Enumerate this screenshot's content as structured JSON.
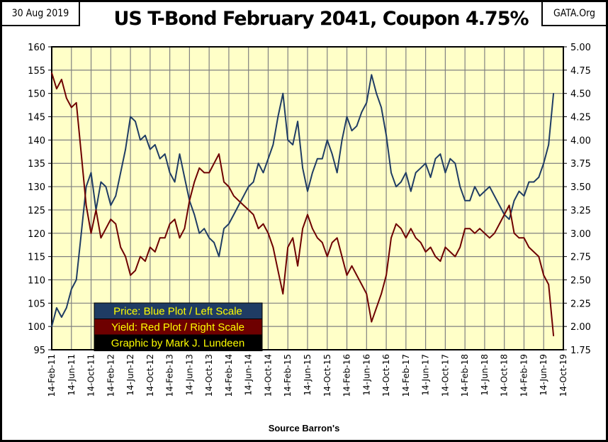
{
  "header": {
    "date": "30 Aug 2019",
    "site": "GATA.Org",
    "title": "US T-Bond February 2041, Coupon 4.75%"
  },
  "footer": {
    "source": "Source Barron's"
  },
  "colors": {
    "background": "#ffffc8",
    "price": "#1f3c64",
    "yield": "#6e0000",
    "grid": "#808080"
  },
  "chart_data": {
    "type": "line",
    "title": "US T-Bond February 2041, Coupon 4.75%",
    "grid": true,
    "legend_placement": "bottom-left",
    "left_axis": {
      "ylim": [
        95,
        160
      ],
      "ticks": [
        "95",
        "100",
        "105",
        "110",
        "115",
        "120",
        "125",
        "130",
        "135",
        "140",
        "145",
        "150",
        "155",
        "160"
      ]
    },
    "right_axis": {
      "ylim": [
        1.75,
        5.0
      ],
      "ticks": [
        "1.75",
        "2.00",
        "2.25",
        "2.50",
        "2.75",
        "3.00",
        "3.25",
        "3.50",
        "3.75",
        "4.00",
        "4.25",
        "4.50",
        "4.75",
        "5.00"
      ]
    },
    "x_ticks": [
      "14-Feb-11",
      "14-Jun-11",
      "14-Oct-11",
      "14-Feb-12",
      "14-Jun-12",
      "14-Oct-12",
      "14-Feb-13",
      "14-Jun-13",
      "14-Oct-13",
      "14-Feb-14",
      "14-Jun-14",
      "14-Oct-14",
      "14-Feb-15",
      "14-Jun-15",
      "14-Oct-15",
      "14-Feb-16",
      "14-Jun-16",
      "14-Oct-16",
      "14-Feb-17",
      "14-Jun-17",
      "14-Oct-17",
      "14-Feb-18",
      "14-Jun-18",
      "14-Oct-18",
      "14-Feb-19",
      "14-Jun-19",
      "14-Oct-19"
    ],
    "legend": [
      "Price:  Blue Plot / Left Scale",
      "Yield:  Red Plot / Right Scale",
      "Graphic by Mark J. Lundeen"
    ],
    "x": [
      "Feb-11",
      "Mar-11",
      "Apr-11",
      "May-11",
      "Jun-11",
      "Jul-11",
      "Aug-11",
      "Sep-11",
      "Oct-11",
      "Nov-11",
      "Dec-11",
      "Jan-12",
      "Feb-12",
      "Mar-12",
      "Apr-12",
      "May-12",
      "Jun-12",
      "Jul-12",
      "Aug-12",
      "Sep-12",
      "Oct-12",
      "Nov-12",
      "Dec-12",
      "Jan-13",
      "Feb-13",
      "Mar-13",
      "Apr-13",
      "May-13",
      "Jun-13",
      "Jul-13",
      "Aug-13",
      "Sep-13",
      "Oct-13",
      "Nov-13",
      "Dec-13",
      "Jan-14",
      "Feb-14",
      "Mar-14",
      "Apr-14",
      "May-14",
      "Jun-14",
      "Jul-14",
      "Aug-14",
      "Sep-14",
      "Oct-14",
      "Nov-14",
      "Dec-14",
      "Jan-15",
      "Feb-15",
      "Mar-15",
      "Apr-15",
      "May-15",
      "Jun-15",
      "Jul-15",
      "Aug-15",
      "Sep-15",
      "Oct-15",
      "Nov-15",
      "Dec-15",
      "Jan-16",
      "Feb-16",
      "Mar-16",
      "Apr-16",
      "May-16",
      "Jun-16",
      "Jul-16",
      "Aug-16",
      "Sep-16",
      "Oct-16",
      "Nov-16",
      "Dec-16",
      "Jan-17",
      "Feb-17",
      "Mar-17",
      "Apr-17",
      "May-17",
      "Jun-17",
      "Jul-17",
      "Aug-17",
      "Sep-17",
      "Oct-17",
      "Nov-17",
      "Dec-17",
      "Jan-18",
      "Feb-18",
      "Mar-18",
      "Apr-18",
      "May-18",
      "Jun-18",
      "Jul-18",
      "Aug-18",
      "Sep-18",
      "Oct-18",
      "Nov-18",
      "Dec-18",
      "Jan-19",
      "Feb-19",
      "Mar-19",
      "Apr-19",
      "May-19",
      "Jun-19",
      "Jul-19",
      "Aug-19"
    ],
    "series": [
      {
        "name": "Price",
        "axis": "left",
        "values": [
          100,
          104,
          102,
          104,
          108,
          110,
          120,
          130,
          133,
          125,
          131,
          130,
          126,
          128,
          133,
          138,
          145,
          144,
          140,
          141,
          138,
          139,
          136,
          137,
          133,
          131,
          137,
          132,
          127,
          124,
          120,
          121,
          119,
          118,
          115,
          121,
          122,
          124,
          126,
          128,
          130,
          131,
          135,
          133,
          136,
          139,
          145,
          150,
          140,
          139,
          144,
          134,
          129,
          133,
          136,
          136,
          140,
          137,
          133,
          140,
          145,
          142,
          143,
          146,
          148,
          154,
          150,
          147,
          141,
          133,
          130,
          131,
          133,
          129,
          133,
          134,
          135,
          132,
          136,
          137,
          133,
          136,
          135,
          130,
          127,
          127,
          130,
          128,
          129,
          130,
          128,
          126,
          124,
          123,
          127,
          129,
          128,
          131,
          131,
          132,
          135,
          139,
          150
        ]
      },
      {
        "name": "Yield",
        "axis": "right",
        "values": [
          4.72,
          4.55,
          4.65,
          4.45,
          4.35,
          4.4,
          3.85,
          3.3,
          3.0,
          3.25,
          2.95,
          3.05,
          3.15,
          3.1,
          2.85,
          2.75,
          2.55,
          2.6,
          2.75,
          2.7,
          2.85,
          2.8,
          2.95,
          2.95,
          3.1,
          3.15,
          2.95,
          3.05,
          3.35,
          3.55,
          3.7,
          3.65,
          3.65,
          3.75,
          3.85,
          3.55,
          3.5,
          3.4,
          3.35,
          3.3,
          3.25,
          3.2,
          3.05,
          3.1,
          3.0,
          2.85,
          2.6,
          2.35,
          2.85,
          2.95,
          2.65,
          3.05,
          3.2,
          3.05,
          2.95,
          2.9,
          2.75,
          2.9,
          2.95,
          2.75,
          2.55,
          2.65,
          2.55,
          2.45,
          2.35,
          2.05,
          2.2,
          2.35,
          2.55,
          2.95,
          3.1,
          3.05,
          2.95,
          3.05,
          2.95,
          2.9,
          2.8,
          2.85,
          2.75,
          2.7,
          2.85,
          2.8,
          2.75,
          2.85,
          3.05,
          3.05,
          3.0,
          3.05,
          3.0,
          2.95,
          3.0,
          3.1,
          3.2,
          3.3,
          3.0,
          2.95,
          2.95,
          2.85,
          2.8,
          2.75,
          2.55,
          2.45,
          1.9
        ]
      }
    ]
  }
}
